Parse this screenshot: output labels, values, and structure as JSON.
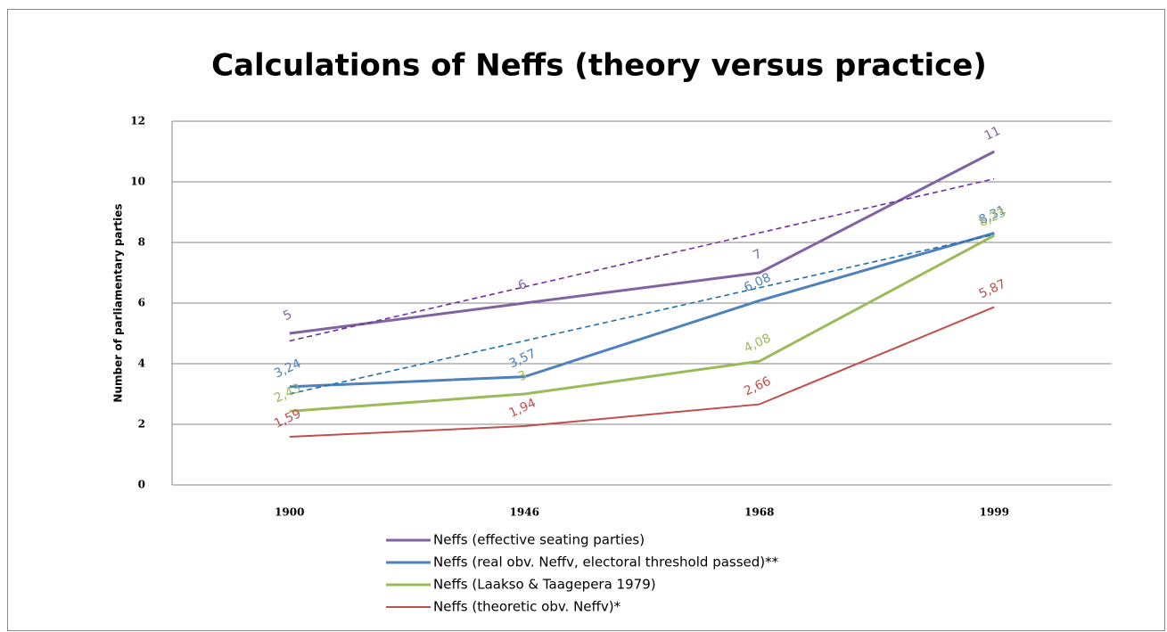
{
  "chart_data": {
    "type": "line",
    "title": "Calculations of Neffs (theory versus practice)",
    "y_label": "Number of parliamentary parties",
    "categories": [
      "1900",
      "1946",
      "1968",
      "1999"
    ],
    "ylim": [
      0,
      12
    ],
    "yticks": [
      0,
      2,
      4,
      6,
      8,
      10,
      12
    ],
    "grid": true,
    "legend": "bottom",
    "series": [
      {
        "name": "Neffs (effective seating parties)",
        "color": "#8064a2",
        "width": 3,
        "values": [
          5,
          6,
          7,
          11
        ],
        "value_labels": [
          "5",
          "6",
          "7",
          "11"
        ]
      },
      {
        "name": "Neffs (real obv. Neffv, electoral threshold passed)**",
        "color": "#4f81bd",
        "width": 3,
        "values": [
          3.24,
          3.57,
          6.08,
          8.31
        ],
        "value_labels": [
          "3,24",
          "3,57",
          "6,08",
          "8,31"
        ]
      },
      {
        "name": "Neffs (Laakso & Taagepera 1979)",
        "color": "#9bbb59",
        "width": 3,
        "values": [
          2.43,
          3,
          4.08,
          8.23
        ],
        "value_labels": [
          "2,43",
          "3",
          "4,08",
          "8,23"
        ]
      },
      {
        "name": "Neffs (theoretic obv. Neffv)*",
        "color": "#c0504d",
        "width": 2,
        "values": [
          1.59,
          1.94,
          2.66,
          5.87
        ],
        "value_labels": [
          "1,59",
          "1,94",
          "2,66",
          "5,87"
        ]
      }
    ],
    "trendlines": [
      {
        "color": "#7030a0",
        "values": [
          4.75,
          10.1
        ]
      },
      {
        "color": "#1f6fb0",
        "values": [
          3.0,
          8.26
        ]
      }
    ]
  }
}
